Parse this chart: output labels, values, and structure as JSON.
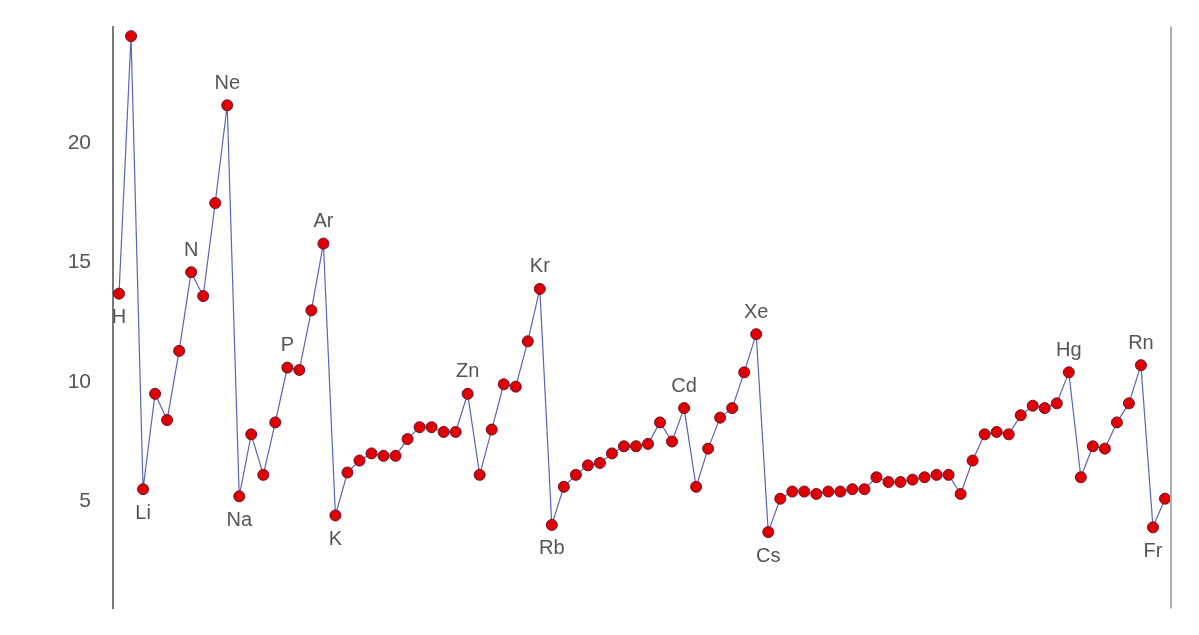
{
  "chart_data": {
    "type": "line",
    "categories": [
      null,
      null,
      null,
      null,
      null,
      null,
      null,
      null,
      null,
      null,
      null,
      null,
      null,
      null,
      null,
      null,
      null,
      null,
      null,
      null,
      null,
      null,
      null,
      null,
      null,
      null,
      null,
      null,
      null,
      null,
      null,
      null,
      null,
      null,
      null,
      null,
      null,
      null,
      null,
      null,
      null,
      null,
      null,
      null,
      null,
      null,
      null,
      null,
      null,
      null,
      null,
      null,
      null,
      null,
      null,
      null,
      null,
      null,
      null,
      null,
      null,
      null,
      null,
      null,
      null,
      null,
      null,
      null,
      null,
      null,
      null,
      null,
      null,
      null,
      null,
      null,
      null,
      null,
      null,
      null,
      null,
      null,
      null,
      null,
      null,
      null,
      null,
      null
    ],
    "series": [
      {
        "color": "#5a64b8",
        "values": [
          13.7,
          24.5,
          5.5,
          9.5,
          8.4,
          11.3,
          14.6,
          13.6,
          17.5,
          21.6,
          5.2,
          7.8,
          6.1,
          8.3,
          10.6,
          10.5,
          13.0,
          15.8,
          4.4,
          6.2,
          6.7,
          7.0,
          6.9,
          6.9,
          7.6,
          8.1,
          8.1,
          7.9,
          7.9,
          9.5,
          6.1,
          8.0,
          9.9,
          9.8,
          11.7,
          13.9,
          4.0,
          5.6,
          6.1,
          6.5,
          6.6,
          7.0,
          7.3,
          7.3,
          7.4,
          8.3,
          7.5,
          8.9,
          5.6,
          7.2,
          8.5,
          8.9,
          10.4,
          12.0,
          3.7,
          5.1,
          5.4,
          5.4,
          5.3,
          5.4,
          5.4,
          5.5,
          5.5,
          6.0,
          5.8,
          5.8,
          5.9,
          6.0,
          6.1,
          6.1,
          5.3,
          6.7,
          7.8,
          7.9,
          7.8,
          8.6,
          9.0,
          8.9,
          9.1,
          10.4,
          6.0,
          7.3,
          7.2,
          8.3,
          9.1,
          10.7,
          3.9,
          5.1
        ]
      }
    ],
    "ylim": [
      0.5,
      24.9
    ],
    "yticks": [
      5,
      10,
      15,
      20
    ],
    "tick_labels": "y",
    "marker": "circle",
    "line_style": "solid",
    "annotations": [
      {
        "text": "H",
        "y": 13.7
      },
      {
        "text": "Li",
        "y": 5.5
      },
      {
        "text": "N",
        "y": 14.6
      },
      {
        "text": "Ne",
        "y": 21.6
      },
      {
        "text": "Na",
        "y": 5.2
      },
      {
        "text": "P",
        "y": 10.6
      },
      {
        "text": "Ar",
        "y": 15.8
      },
      {
        "text": "K",
        "y": 4.4
      },
      {
        "text": "Zn",
        "y": 9.5
      },
      {
        "text": "Kr",
        "y": 13.9
      },
      {
        "text": "Rb",
        "y": 4.0
      },
      {
        "text": "Cd",
        "y": 8.9
      },
      {
        "text": "Xe",
        "y": 12.0
      },
      {
        "text": "Cs",
        "y": 3.7
      },
      {
        "text": "Hg",
        "y": 10.4
      },
      {
        "text": "Rn",
        "y": 10.7
      },
      {
        "text": "Fr",
        "y": 3.9
      }
    ]
  }
}
